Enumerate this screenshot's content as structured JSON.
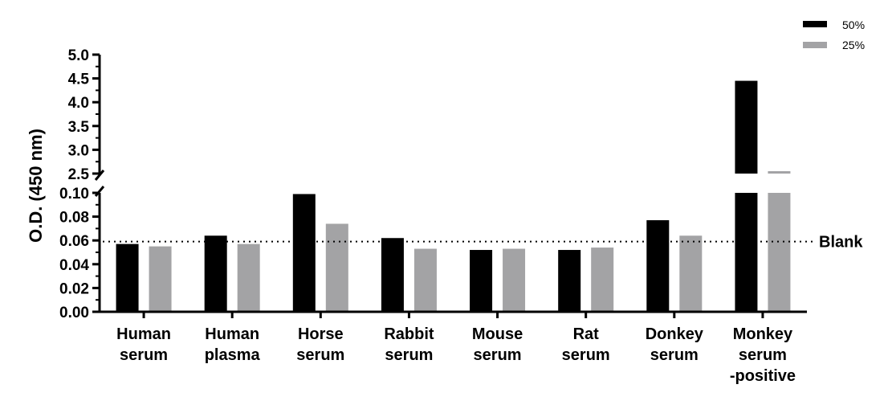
{
  "chart_data": {
    "type": "bar",
    "ylabel": "O.D. (450 nm)",
    "categories": [
      [
        "Human",
        "serum"
      ],
      [
        "Human",
        "plasma"
      ],
      [
        "Horse",
        "serum"
      ],
      [
        "Rabbit",
        "serum"
      ],
      [
        "Mouse",
        "serum"
      ],
      [
        "Rat",
        "serum"
      ],
      [
        "Donkey",
        "serum"
      ],
      [
        "Monkey",
        "serum",
        "-positive"
      ]
    ],
    "series": [
      {
        "name": "50%",
        "color": "#000000",
        "values": [
          0.057,
          0.064,
          0.099,
          0.062,
          0.052,
          0.052,
          0.077,
          4.45
        ]
      },
      {
        "name": "25%",
        "color": "#a3a3a5",
        "values": [
          0.055,
          0.057,
          0.074,
          0.053,
          0.053,
          0.054,
          0.064,
          2.55
        ]
      }
    ],
    "y_axis_break": {
      "lower_range": [
        0,
        0.1
      ],
      "upper_range": [
        2.5,
        5.0
      ],
      "lower_ticks": [
        "0.00",
        "0.02",
        "0.04",
        "0.06",
        "0.08",
        "0.10"
      ],
      "upper_ticks": [
        "2.5",
        "3.0",
        "3.5",
        "4.0",
        "4.5",
        "5.0"
      ]
    },
    "reference_line": {
      "label": "Blank",
      "value": 0.059,
      "style": "dotted"
    },
    "legend_position": "top-right",
    "grid": false
  }
}
